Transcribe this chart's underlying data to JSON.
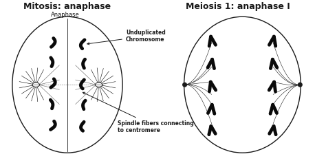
{
  "title_left": "Mitosis: anaphase",
  "title_right": "Meiosis 1: anaphase I",
  "label_anaphase": "Anaphase",
  "label_unduplicated": "Unduplicated\nChromosome",
  "label_spindle": "Spindle fibers connecting\nto centromere",
  "bg_color": "#ffffff",
  "line_color": "#1a1a1a",
  "title_fontsize": 9,
  "label_fontsize": 5.5,
  "fig_width": 4.74,
  "fig_height": 2.37,
  "dpi": 100
}
